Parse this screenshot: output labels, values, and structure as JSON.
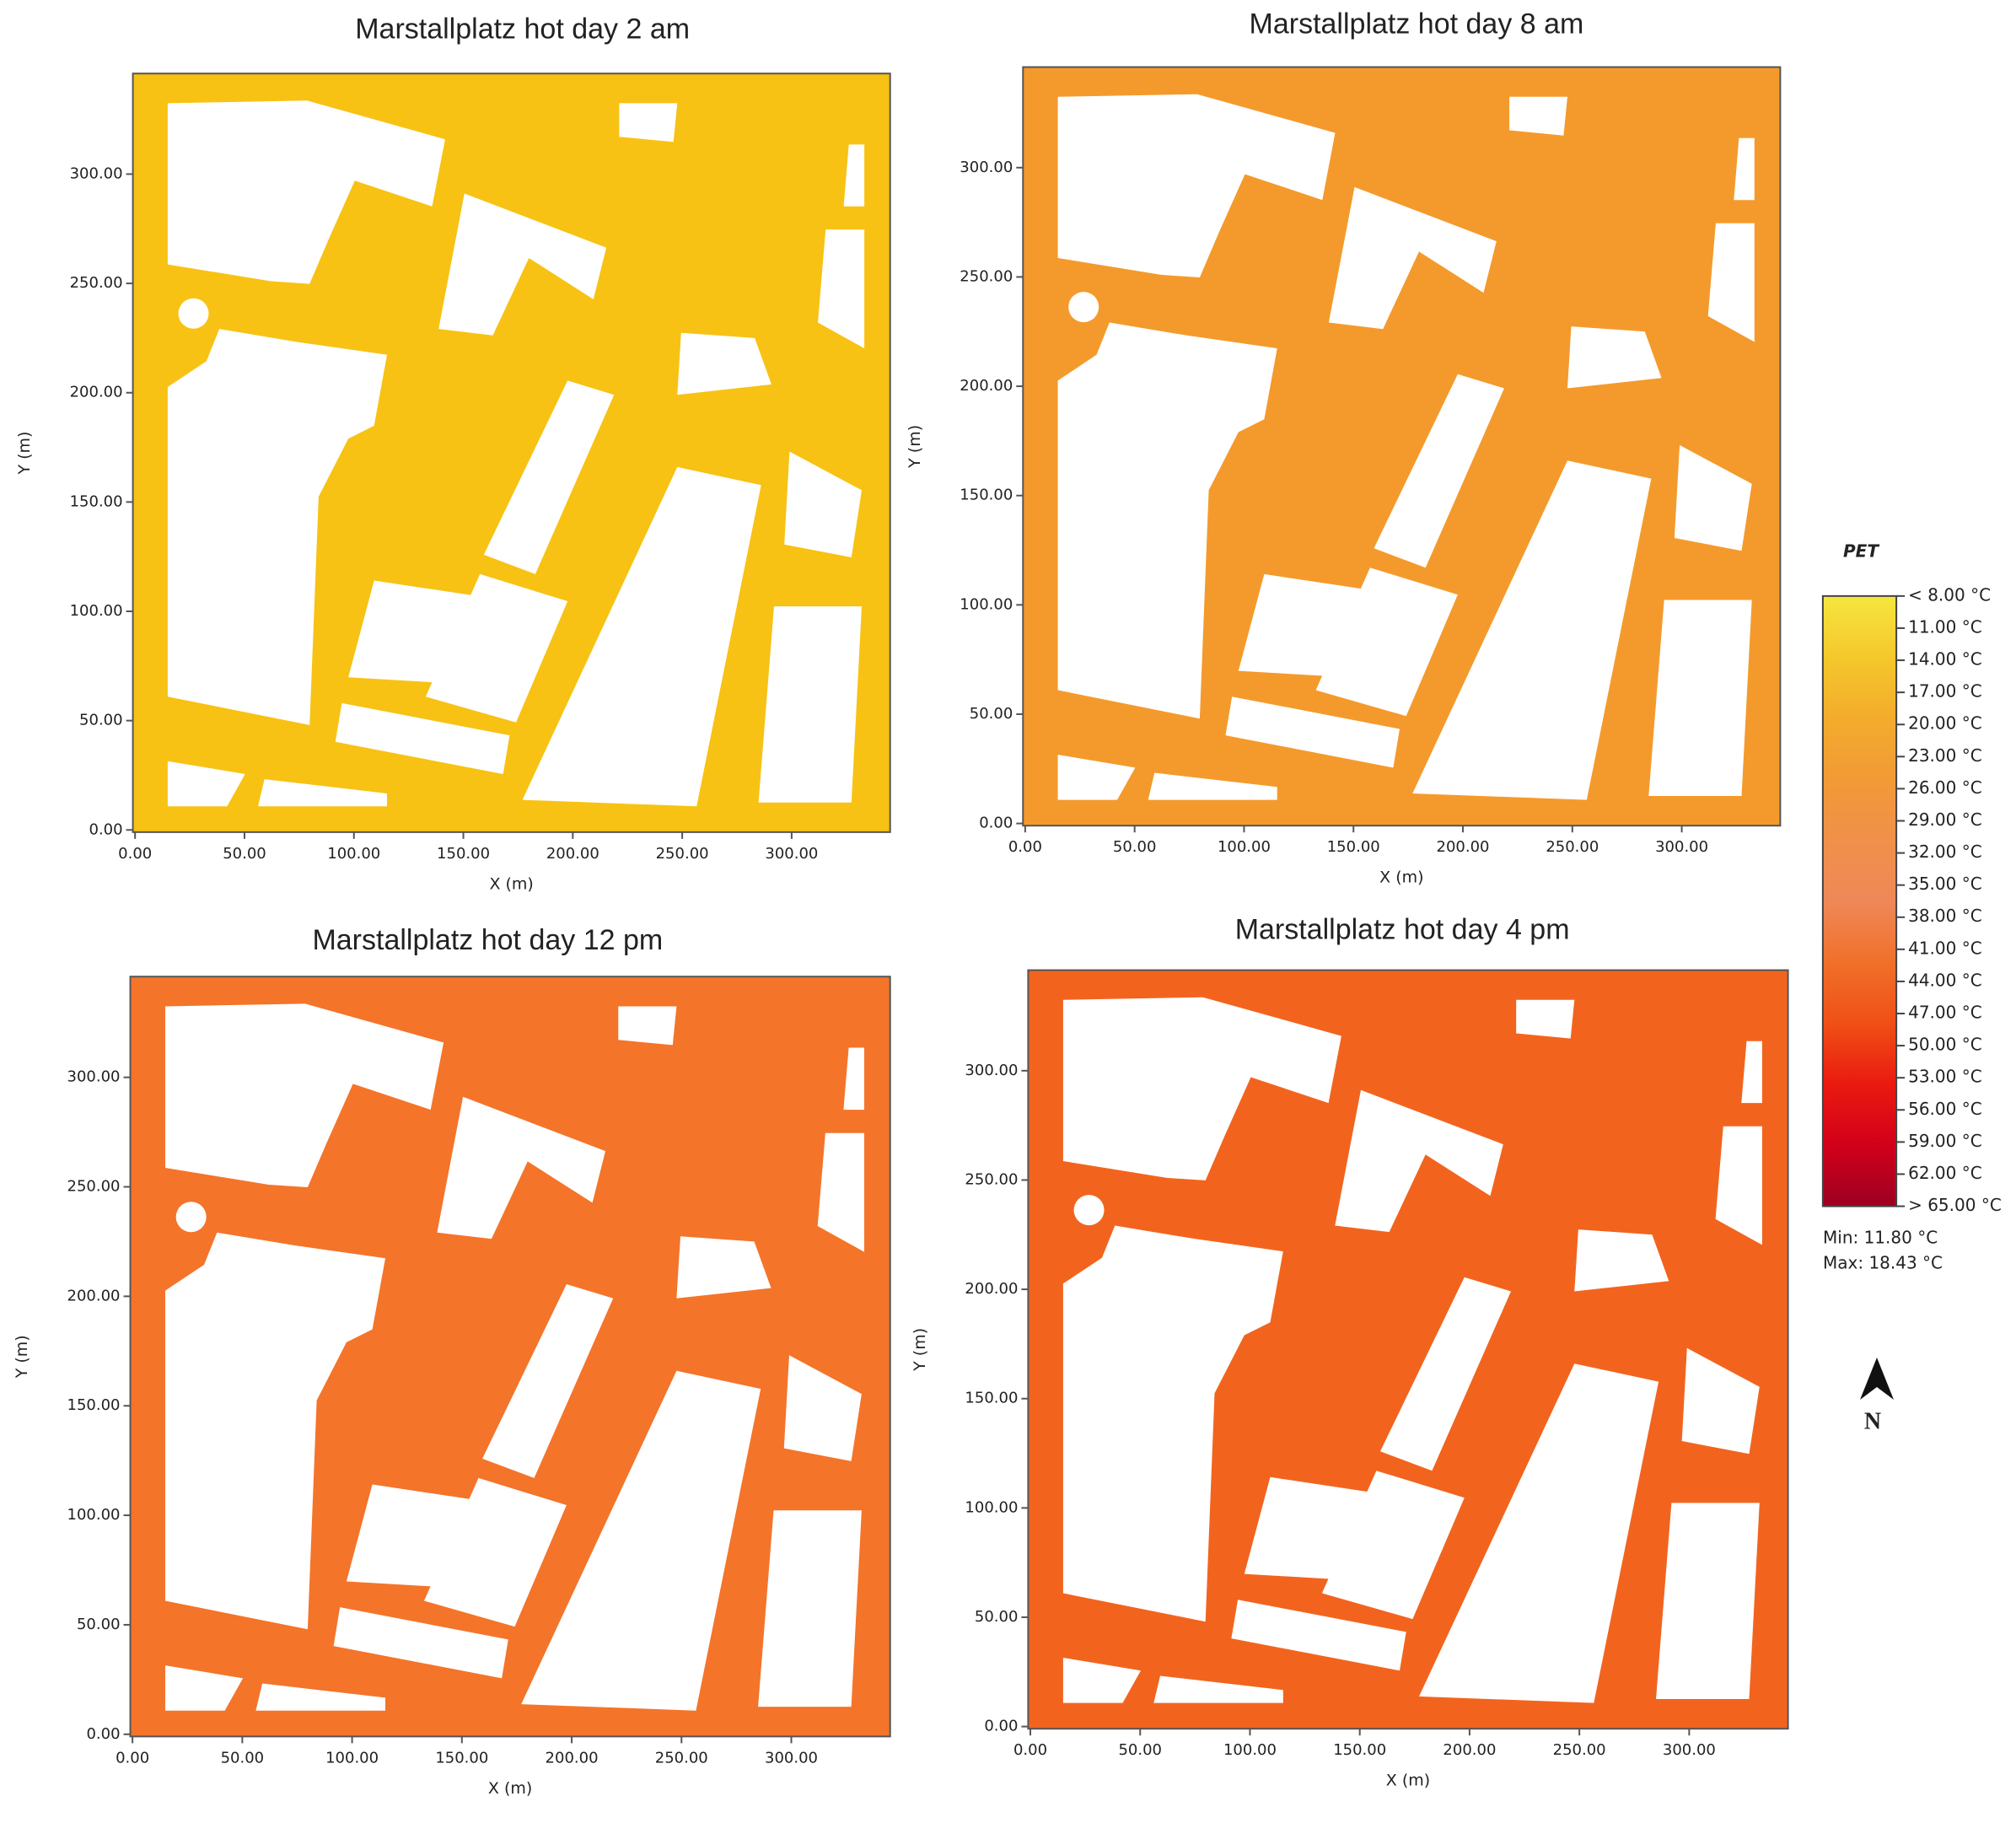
{
  "chart_data": [
    {
      "type": "heatmap",
      "title": "Marstallplatz hot day 2 am",
      "xlabel": "X (m)",
      "ylabel": "Y (m)",
      "color": "#f7c214",
      "xlim": [
        -1,
        345
      ],
      "ylim": [
        -1,
        346
      ],
      "xticks": [
        {
          "value": 0,
          "label": "0.00"
        },
        {
          "value": 50,
          "label": "50.00"
        },
        {
          "value": 100,
          "label": "100.00"
        },
        {
          "value": 150,
          "label": "150.00"
        },
        {
          "value": 200,
          "label": "200.00"
        },
        {
          "value": 250,
          "label": "250.00"
        },
        {
          "value": 300,
          "label": "300.00"
        }
      ],
      "yticks": [
        {
          "value": 0,
          "label": "0.00"
        },
        {
          "value": 50,
          "label": "50.00"
        },
        {
          "value": 100,
          "label": "100.00"
        },
        {
          "value": 150,
          "label": "150.00"
        },
        {
          "value": 200,
          "label": "200.00"
        },
        {
          "value": 250,
          "label": "250.00"
        },
        {
          "value": 300,
          "label": "300.00"
        }
      ]
    },
    {
      "type": "heatmap",
      "title": "Marstallplatz hot day 8 am",
      "xlabel": "X (m)",
      "ylabel": "Y (m)",
      "color": "#f49a2c",
      "xlim": [
        -1,
        345
      ],
      "ylim": [
        -1,
        346
      ],
      "xticks": [
        {
          "value": 0,
          "label": "0.00"
        },
        {
          "value": 50,
          "label": "50.00"
        },
        {
          "value": 100,
          "label": "100.00"
        },
        {
          "value": 150,
          "label": "150.00"
        },
        {
          "value": 200,
          "label": "200.00"
        },
        {
          "value": 250,
          "label": "250.00"
        },
        {
          "value": 300,
          "label": "300.00"
        }
      ],
      "yticks": [
        {
          "value": 0,
          "label": "0.00"
        },
        {
          "value": 50,
          "label": "50.00"
        },
        {
          "value": 100,
          "label": "100.00"
        },
        {
          "value": 150,
          "label": "150.00"
        },
        {
          "value": 200,
          "label": "200.00"
        },
        {
          "value": 250,
          "label": "250.00"
        },
        {
          "value": 300,
          "label": "300.00"
        }
      ]
    },
    {
      "type": "heatmap",
      "title": "Marstallplatz hot day 12 pm",
      "xlabel": "X (m)",
      "ylabel": "Y (m)",
      "color": "#f4742a",
      "xlim": [
        -1,
        345
      ],
      "ylim": [
        -1,
        346
      ],
      "xticks": [
        {
          "value": 0,
          "label": "0.00"
        },
        {
          "value": 50,
          "label": "50.00"
        },
        {
          "value": 100,
          "label": "100.00"
        },
        {
          "value": 150,
          "label": "150.00"
        },
        {
          "value": 200,
          "label": "200.00"
        },
        {
          "value": 250,
          "label": "250.00"
        },
        {
          "value": 300,
          "label": "300.00"
        }
      ],
      "yticks": [
        {
          "value": 0,
          "label": "0.00"
        },
        {
          "value": 50,
          "label": "50.00"
        },
        {
          "value": 100,
          "label": "100.00"
        },
        {
          "value": 150,
          "label": "150.00"
        },
        {
          "value": 200,
          "label": "200.00"
        },
        {
          "value": 250,
          "label": "250.00"
        },
        {
          "value": 300,
          "label": "300.00"
        }
      ]
    },
    {
      "type": "heatmap",
      "title": "Marstallplatz hot day 4 pm",
      "xlabel": "X (m)",
      "ylabel": "Y (m)",
      "color": "#f2641e",
      "xlim": [
        -1,
        345
      ],
      "ylim": [
        -1,
        346
      ],
      "xticks": [
        {
          "value": 0,
          "label": "0.00"
        },
        {
          "value": 50,
          "label": "50.00"
        },
        {
          "value": 100,
          "label": "100.00"
        },
        {
          "value": 150,
          "label": "150.00"
        },
        {
          "value": 200,
          "label": "200.00"
        },
        {
          "value": 250,
          "label": "250.00"
        },
        {
          "value": 300,
          "label": "300.00"
        }
      ],
      "yticks": [
        {
          "value": 0,
          "label": "0.00"
        },
        {
          "value": 50,
          "label": "50.00"
        },
        {
          "value": 100,
          "label": "100.00"
        },
        {
          "value": 150,
          "label": "150.00"
        },
        {
          "value": 200,
          "label": "200.00"
        },
        {
          "value": 250,
          "label": "250.00"
        },
        {
          "value": 300,
          "label": "300.00"
        }
      ]
    }
  ],
  "legend": {
    "title": "PET",
    "labels": [
      "< 8.00 °C",
      "11.00 °C",
      "14.00 °C",
      "17.00 °C",
      "20.00 °C",
      "23.00 °C",
      "26.00 °C",
      "29.00 °C",
      "32.00 °C",
      "35.00 °C",
      "38.00 °C",
      "41.00 °C",
      "44.00 °C",
      "47.00 °C",
      "50.00 °C",
      "53.00 °C",
      "56.00 °C",
      "59.00 °C",
      "62.00 °C",
      "> 65.00 °C"
    ],
    "colors": [
      "#f6e63e",
      "#f5c82c",
      "#f3ac2c",
      "#f29a36",
      "#f0904a",
      "#ef8858",
      "#f0702a",
      "#f05016",
      "#ea1a10",
      "#d2001a",
      "#9c0022"
    ],
    "min": "Min: 11.80 °C",
    "max": "Max: 18.43 °C"
  },
  "north": "N"
}
